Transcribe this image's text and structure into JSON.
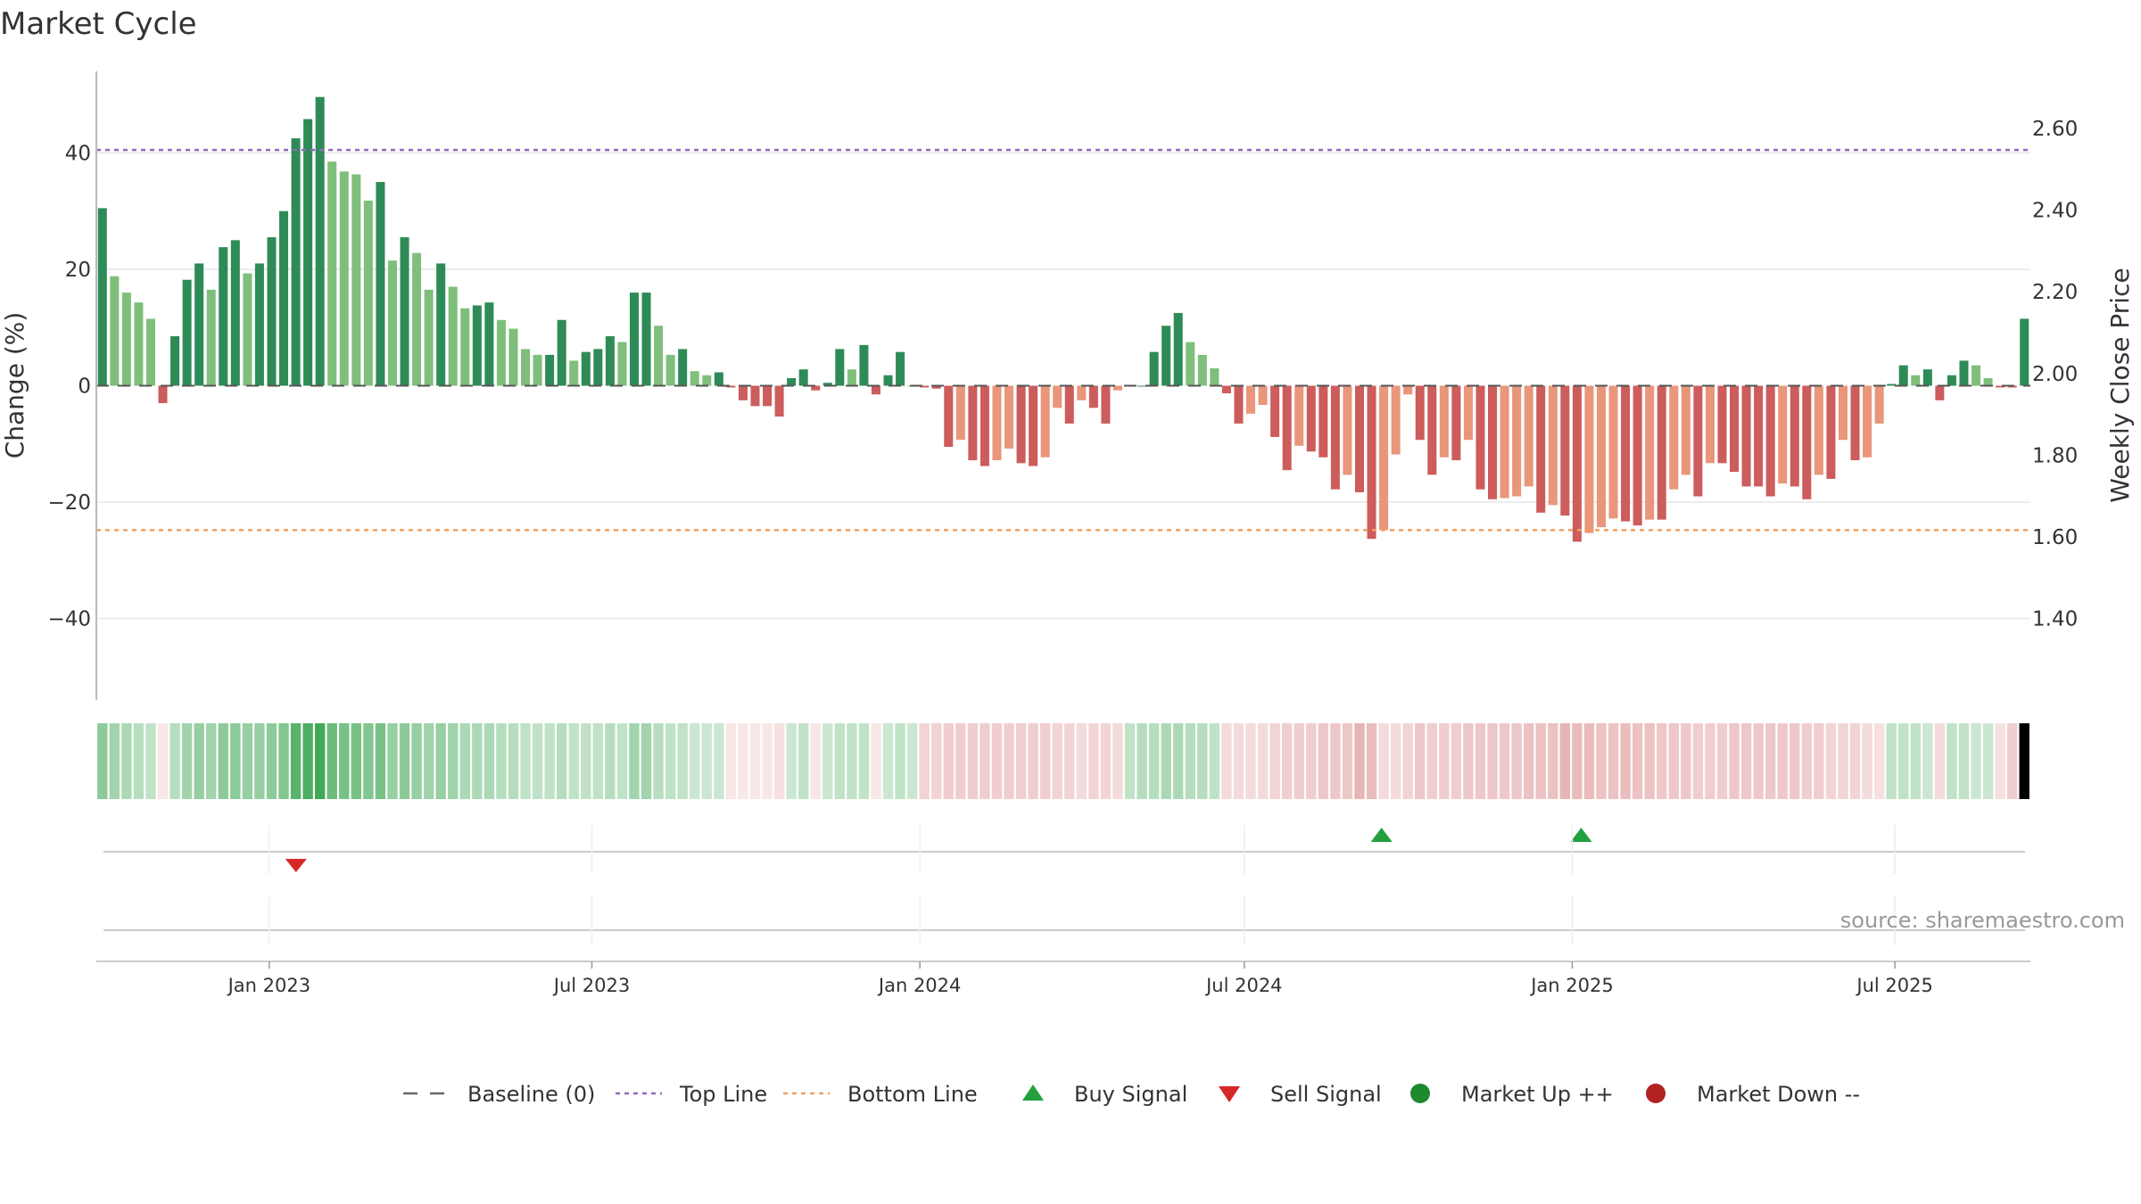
{
  "chart_data": {
    "type": "bar",
    "title": "Market Cycle",
    "ylabel": "Change (%)",
    "y2label": "Weekly Close Price",
    "ylim": [
      -54,
      54
    ],
    "y2lim": [
      1.2,
      2.74
    ],
    "yticks": [
      -40,
      -20,
      0,
      20,
      40
    ],
    "y2ticks": [
      "1.40",
      "1.60",
      "1.80",
      "2.00",
      "2.20",
      "2.40",
      "2.60"
    ],
    "y2tick_values": [
      1.4,
      1.6,
      1.8,
      2.0,
      2.2,
      2.4,
      2.6
    ],
    "xrange": [
      "2022-09-26",
      "2025-09-15"
    ],
    "xticks": [
      {
        "label": "Jan 2023",
        "date": "2023-01-01"
      },
      {
        "label": "Jul 2023",
        "date": "2023-07-01"
      },
      {
        "label": "Jan 2024",
        "date": "2024-01-01"
      },
      {
        "label": "Jul 2024",
        "date": "2024-07-01"
      },
      {
        "label": "Jan 2025",
        "date": "2025-01-01"
      },
      {
        "label": "Jul 2025",
        "date": "2025-07-01"
      }
    ],
    "top_line": 40.5,
    "bottom_line": -24.8,
    "grid": true,
    "legend_position": "bottom",
    "source_text": "source: sharemaestro.com",
    "legend": [
      {
        "label": "Baseline (0)",
        "symbol": "dash",
        "color": "#666666"
      },
      {
        "label": "Top Line",
        "symbol": "dotted",
        "color": "#9467bd"
      },
      {
        "label": "Bottom Line",
        "symbol": "dotted",
        "color": "#f0a060"
      },
      {
        "label": "Buy Signal",
        "symbol": "triangle-up",
        "color": "#22a040"
      },
      {
        "label": "Sell Signal",
        "symbol": "triangle-down",
        "color": "#d62728"
      },
      {
        "label": "Market Up ++",
        "symbol": "circle",
        "color": "#1e8a2e"
      },
      {
        "label": "Market Down --",
        "symbol": "circle",
        "color": "#b22222"
      }
    ],
    "colors": {
      "up_strong": "#2e8b57",
      "up_light": "#7fbf7b",
      "down_strong": "#cd5c5c",
      "down_light": "#e9967a",
      "top_line": "#9467bd",
      "bottom_line": "#f0a060",
      "grid": "#e6e6e6"
    },
    "values": [
      30.5,
      18.8,
      16,
      14.3,
      11.5,
      -3,
      8.5,
      18.2,
      21,
      16.5,
      23.8,
      25,
      19.3,
      21,
      25.5,
      30,
      42.5,
      45.8,
      49.6,
      38.5,
      36.8,
      36.3,
      31.8,
      35,
      21.5,
      25.5,
      22.8,
      16.5,
      21,
      17,
      13.3,
      13.8,
      14.3,
      11.3,
      9.8,
      6.3,
      5.3,
      5.3,
      11.3,
      4.3,
      5.8,
      6.3,
      8.5,
      7.5,
      16,
      16,
      10.3,
      5.3,
      6.3,
      2.5,
      1.8,
      2.3,
      -0.3,
      -2.5,
      -3.5,
      -3.5,
      -5.3,
      1.3,
      2.8,
      -0.8,
      0.5,
      6.3,
      2.8,
      7,
      -1.5,
      1.8,
      5.8,
      0,
      -0.3,
      -0.5,
      -10.5,
      -9.3,
      -12.8,
      -13.8,
      -12.8,
      -10.8,
      -13.3,
      -13.8,
      -12.3,
      -3.8,
      -6.5,
      -2.5,
      -3.8,
      -6.5,
      -0.8,
      0,
      0,
      5.8,
      10.3,
      12.5,
      7.5,
      5.3,
      3,
      -1.3,
      -6.5,
      -4.8,
      -3.3,
      -8.8,
      -14.5,
      -10.3,
      -11.3,
      -12.3,
      -17.8,
      -15.3,
      -18.3,
      -26.3,
      -24.8,
      -11.8,
      -1.5,
      -9.3,
      -15.3,
      -12.3,
      -12.8,
      -9.3,
      -17.8,
      -19.5,
      -19.3,
      -19,
      -17.3,
      -21.8,
      -20.5,
      -22.3,
      -26.8,
      -25.3,
      -24.3,
      -22.8,
      -23.3,
      -24,
      -23,
      -23,
      -17.8,
      -15.3,
      -19,
      -13.3,
      -13.3,
      -14.8,
      -17.3,
      -17.3,
      -19,
      -16.8,
      -17.3,
      -19.5,
      -15.3,
      -16,
      -9.3,
      -12.8,
      -12.3,
      -6.5,
      0.3,
      3.5,
      1.8,
      2.8,
      -2.5,
      1.8,
      4.3,
      3.5,
      1.3,
      -0.3,
      -0.3,
      11.5
    ],
    "intensity": [
      0.55,
      0.45,
      0.4,
      0.35,
      0.3,
      0.2,
      0.35,
      0.45,
      0.5,
      0.45,
      0.55,
      0.55,
      0.5,
      0.5,
      0.55,
      0.6,
      0.8,
      0.85,
      0.9,
      0.7,
      0.65,
      0.65,
      0.6,
      0.65,
      0.5,
      0.55,
      0.5,
      0.45,
      0.5,
      0.45,
      0.4,
      0.4,
      0.4,
      0.35,
      0.35,
      0.3,
      0.3,
      0.3,
      0.35,
      0.3,
      0.3,
      0.3,
      0.35,
      0.3,
      0.45,
      0.45,
      0.35,
      0.3,
      0.3,
      0.25,
      0.25,
      0.25,
      0.2,
      0.2,
      0.2,
      0.2,
      0.25,
      0.25,
      0.3,
      0.2,
      0.25,
      0.3,
      0.3,
      0.3,
      0.2,
      0.25,
      0.3,
      0.25,
      0.35,
      0.35,
      0.4,
      0.4,
      0.4,
      0.4,
      0.4,
      0.4,
      0.4,
      0.4,
      0.4,
      0.35,
      0.35,
      0.3,
      0.35,
      0.35,
      0.3,
      0.3,
      0.35,
      0.35,
      0.4,
      0.4,
      0.35,
      0.35,
      0.3,
      0.3,
      0.3,
      0.3,
      0.3,
      0.35,
      0.4,
      0.4,
      0.4,
      0.45,
      0.45,
      0.45,
      0.6,
      0.55,
      0.3,
      0.3,
      0.35,
      0.45,
      0.4,
      0.4,
      0.4,
      0.45,
      0.45,
      0.45,
      0.45,
      0.45,
      0.5,
      0.5,
      0.5,
      0.6,
      0.55,
      0.55,
      0.5,
      0.5,
      0.55,
      0.5,
      0.5,
      0.45,
      0.45,
      0.45,
      0.4,
      0.4,
      0.4,
      0.45,
      0.45,
      0.45,
      0.45,
      0.45,
      0.45,
      0.4,
      0.4,
      0.35,
      0.35,
      0.35,
      0.3,
      0.25,
      0.3,
      0.3,
      0.3,
      0.25,
      0.3,
      0.3,
      0.3,
      0.25,
      0.25,
      0.25,
      0.4
    ],
    "buy_signals": [
      "2024-09-16",
      "2025-01-06"
    ],
    "sell_signals": [
      "2023-01-16"
    ]
  }
}
